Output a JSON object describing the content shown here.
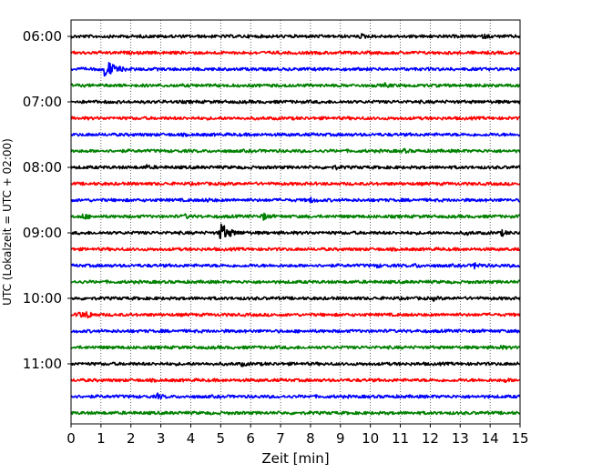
{
  "chart_data": {
    "type": "line",
    "title": "",
    "xlabel": "Zeit  [min]",
    "ylabel": "UTC (Lokalzeit = UTC + 02:00)",
    "xlim": [
      0,
      15
    ],
    "xticks": [
      0,
      1,
      2,
      3,
      4,
      5,
      6,
      7,
      8,
      9,
      10,
      11,
      12,
      13,
      14,
      15
    ],
    "yticks": [
      "06:00",
      "07:00",
      "08:00",
      "09:00",
      "10:00",
      "11:00"
    ],
    "grid": "vertical dotted at each minute",
    "trace_colors": [
      "#000000",
      "#ff0000",
      "#0000ff",
      "#008000"
    ],
    "rows": [
      {
        "start": "06:00",
        "color": "#000000",
        "events": [
          {
            "x": 9.7,
            "amp": 0.35
          },
          {
            "x": 13.8,
            "amp": 0.3
          }
        ]
      },
      {
        "start": "06:15",
        "color": "#ff0000",
        "events": []
      },
      {
        "start": "06:30",
        "color": "#0000ff",
        "events": [
          {
            "x": 1.15,
            "amp": 2.6
          }
        ]
      },
      {
        "start": "06:45",
        "color": "#008000",
        "events": [
          {
            "x": 10.5,
            "amp": 0.3
          }
        ]
      },
      {
        "start": "07:00",
        "color": "#000000",
        "events": []
      },
      {
        "start": "07:15",
        "color": "#ff0000",
        "events": []
      },
      {
        "start": "07:30",
        "color": "#0000ff",
        "events": []
      },
      {
        "start": "07:45",
        "color": "#008000",
        "events": [
          {
            "x": 11.1,
            "amp": 0.4
          }
        ]
      },
      {
        "start": "08:00",
        "color": "#000000",
        "events": [
          {
            "x": 2.5,
            "amp": 0.35
          },
          {
            "x": 8.8,
            "amp": 0.35
          }
        ]
      },
      {
        "start": "08:15",
        "color": "#ff0000",
        "events": []
      },
      {
        "start": "08:30",
        "color": "#0000ff",
        "events": [
          {
            "x": 8.0,
            "amp": 0.5
          },
          {
            "x": 4.5,
            "amp": 0.35
          }
        ]
      },
      {
        "start": "08:45",
        "color": "#008000",
        "events": [
          {
            "x": 0.4,
            "amp": 0.6
          },
          {
            "x": 3.8,
            "amp": 0.4
          },
          {
            "x": 6.4,
            "amp": 0.8
          }
        ]
      },
      {
        "start": "09:00",
        "color": "#000000",
        "events": [
          {
            "x": 5.0,
            "amp": 2.4
          },
          {
            "x": 14.4,
            "amp": 0.5
          },
          {
            "x": 13.2,
            "amp": 0.3
          }
        ]
      },
      {
        "start": "09:15",
        "color": "#ff0000",
        "events": []
      },
      {
        "start": "09:30",
        "color": "#0000ff",
        "events": [
          {
            "x": 11.5,
            "amp": 0.35
          },
          {
            "x": 13.5,
            "amp": 0.7
          },
          {
            "x": 10.2,
            "amp": 0.3
          }
        ]
      },
      {
        "start": "09:45",
        "color": "#008000",
        "events": []
      },
      {
        "start": "10:00",
        "color": "#000000",
        "events": [
          {
            "x": 12.1,
            "amp": 0.3
          }
        ]
      },
      {
        "start": "10:15",
        "color": "#ff0000",
        "events": [
          {
            "x": 0.25,
            "amp": 0.9
          },
          {
            "x": 0.55,
            "amp": 0.8
          }
        ]
      },
      {
        "start": "10:30",
        "color": "#0000ff",
        "events": []
      },
      {
        "start": "10:45",
        "color": "#008000",
        "events": [
          {
            "x": 14.3,
            "amp": 0.35
          }
        ]
      },
      {
        "start": "11:00",
        "color": "#000000",
        "events": [
          {
            "x": 5.7,
            "amp": 0.35
          }
        ]
      },
      {
        "start": "11:15",
        "color": "#ff0000",
        "events": [
          {
            "x": 14.5,
            "amp": 0.3
          }
        ]
      },
      {
        "start": "11:30",
        "color": "#0000ff",
        "events": [
          {
            "x": 2.9,
            "amp": 0.55
          }
        ]
      },
      {
        "start": "11:45",
        "color": "#008000",
        "events": []
      }
    ]
  }
}
